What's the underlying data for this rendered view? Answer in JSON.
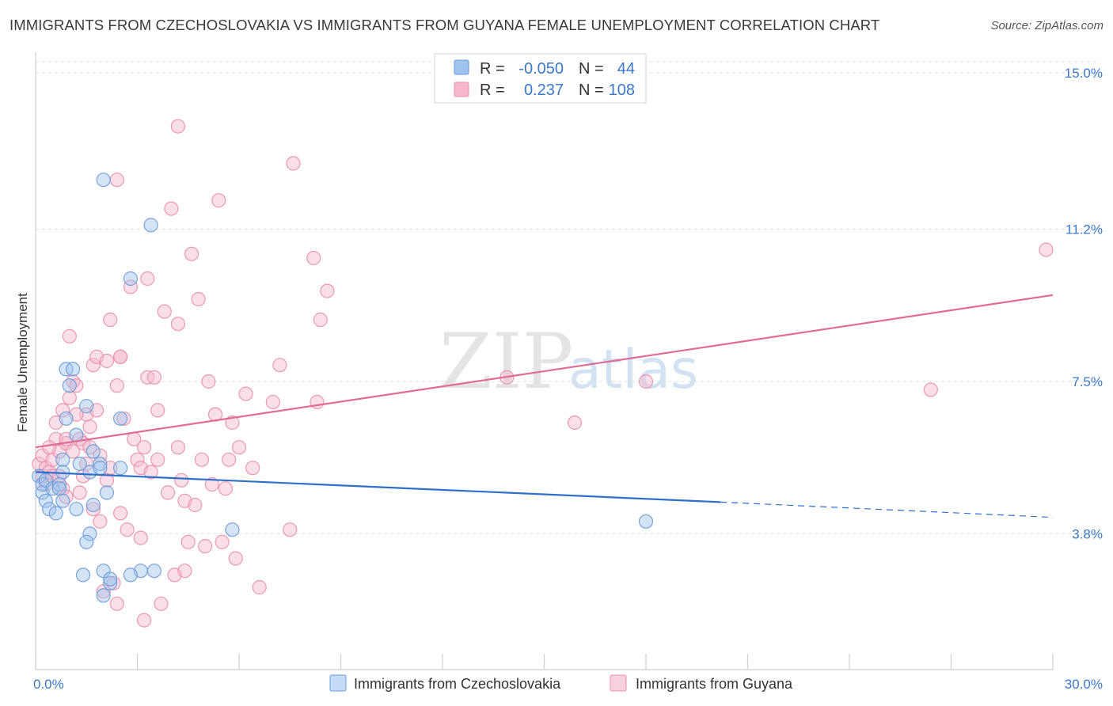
{
  "title": "IMMIGRANTS FROM CZECHOSLOVAKIA VS IMMIGRANTS FROM GUYANA FEMALE UNEMPLOYMENT CORRELATION CHART",
  "source": "Source: ZipAtlas.com",
  "watermark": {
    "zip": "ZIP",
    "atlas": "atlas"
  },
  "colors": {
    "blue_fill": "#9ec3ee",
    "blue_stroke": "#6b9ad8",
    "blue_line": "#2f6fcc",
    "pink_fill": "#f5b8cb",
    "pink_stroke": "#e98fab",
    "pink_line": "#e06b95",
    "axis_text": "#3b78c9",
    "grid": "#dddddd"
  },
  "legend": {
    "rows": [
      {
        "r_label": "R =",
        "r_value": "-0.050",
        "n_label": "N =",
        "n_value": "44",
        "series": "blue"
      },
      {
        "r_label": "R =",
        "r_value": "0.237",
        "n_label": "N =",
        "n_value": "108",
        "series": "pink"
      }
    ]
  },
  "chart_data": {
    "type": "scatter",
    "title": "IMMIGRANTS FROM CZECHOSLOVAKIA VS IMMIGRANTS FROM GUYANA FEMALE UNEMPLOYMENT CORRELATION CHART",
    "xlabel": "",
    "ylabel": "Female Unemployment",
    "xlim": [
      0,
      30
    ],
    "ylim": [
      0.5,
      15.5
    ],
    "x_tick_labels": [
      {
        "value": 0,
        "label": "0.0%"
      },
      {
        "value": 30,
        "label": "30.0%"
      }
    ],
    "y_tick_labels": [
      {
        "value": 3.8,
        "label": "3.8%"
      },
      {
        "value": 7.5,
        "label": "7.5%"
      },
      {
        "value": 11.2,
        "label": "11.2%"
      },
      {
        "value": 15.0,
        "label": "15.0%"
      }
    ],
    "legend_position": "bottom",
    "series": [
      {
        "name": "Immigrants from Czechoslovakia",
        "color": "blue",
        "R": -0.05,
        "N": 44,
        "trend": {
          "x0": 0,
          "y0": 5.3,
          "x1": 20.2,
          "y1": 4.57,
          "dash_to_x": 30,
          "dash_to_y": 4.2
        },
        "points": [
          [
            0.1,
            5.2
          ],
          [
            0.2,
            4.8
          ],
          [
            0.2,
            5.0
          ],
          [
            0.3,
            4.6
          ],
          [
            0.3,
            5.1
          ],
          [
            0.4,
            4.4
          ],
          [
            0.5,
            4.9
          ],
          [
            0.6,
            4.3
          ],
          [
            0.7,
            5.0
          ],
          [
            0.8,
            5.6
          ],
          [
            0.8,
            5.3
          ],
          [
            0.7,
            4.9
          ],
          [
            0.8,
            4.6
          ],
          [
            0.9,
            7.8
          ],
          [
            0.9,
            6.6
          ],
          [
            1.0,
            7.4
          ],
          [
            1.1,
            7.8
          ],
          [
            1.2,
            6.2
          ],
          [
            1.3,
            5.5
          ],
          [
            1.2,
            4.4
          ],
          [
            1.5,
            6.9
          ],
          [
            1.6,
            3.8
          ],
          [
            1.6,
            5.3
          ],
          [
            1.7,
            4.5
          ],
          [
            1.7,
            5.8
          ],
          [
            1.9,
            5.5
          ],
          [
            1.9,
            5.4
          ],
          [
            1.5,
            3.6
          ],
          [
            1.4,
            2.8
          ],
          [
            2.0,
            2.9
          ],
          [
            2.0,
            2.3
          ],
          [
            2.2,
            2.6
          ],
          [
            2.2,
            2.7
          ],
          [
            2.5,
            5.4
          ],
          [
            2.1,
            4.8
          ],
          [
            2.0,
            12.4
          ],
          [
            2.5,
            6.6
          ],
          [
            2.8,
            10.0
          ],
          [
            3.4,
            11.3
          ],
          [
            3.1,
            2.9
          ],
          [
            3.5,
            2.9
          ],
          [
            2.8,
            2.8
          ],
          [
            5.8,
            3.9
          ],
          [
            18.0,
            4.1
          ]
        ]
      },
      {
        "name": "Immigrants from Guyana",
        "color": "pink",
        "R": 0.237,
        "N": 108,
        "trend": {
          "x0": 0,
          "y0": 5.9,
          "x1": 30,
          "y1": 9.6
        },
        "points": [
          [
            0.1,
            5.5
          ],
          [
            0.2,
            5.2
          ],
          [
            0.2,
            5.7
          ],
          [
            0.3,
            5.0
          ],
          [
            0.3,
            5.4
          ],
          [
            0.4,
            5.3
          ],
          [
            0.5,
            5.6
          ],
          [
            0.5,
            5.2
          ],
          [
            0.6,
            6.5
          ],
          [
            0.6,
            6.1
          ],
          [
            0.7,
            5.8
          ],
          [
            0.7,
            5.2
          ],
          [
            0.8,
            4.9
          ],
          [
            0.8,
            6.8
          ],
          [
            0.9,
            4.7
          ],
          [
            0.9,
            6.0
          ],
          [
            1.0,
            8.6
          ],
          [
            1.0,
            7.1
          ],
          [
            1.1,
            7.5
          ],
          [
            1.1,
            5.8
          ],
          [
            1.2,
            7.4
          ],
          [
            1.3,
            6.1
          ],
          [
            1.3,
            4.8
          ],
          [
            1.4,
            6.0
          ],
          [
            1.4,
            5.2
          ],
          [
            1.5,
            6.7
          ],
          [
            1.5,
            5.5
          ],
          [
            1.6,
            6.4
          ],
          [
            1.7,
            7.9
          ],
          [
            1.7,
            4.4
          ],
          [
            1.8,
            8.1
          ],
          [
            1.8,
            6.8
          ],
          [
            1.9,
            5.7
          ],
          [
            1.9,
            4.1
          ],
          [
            2.0,
            2.4
          ],
          [
            2.1,
            8.0
          ],
          [
            2.1,
            5.1
          ],
          [
            2.2,
            9.0
          ],
          [
            2.2,
            5.4
          ],
          [
            2.3,
            2.6
          ],
          [
            2.4,
            2.1
          ],
          [
            2.4,
            7.4
          ],
          [
            2.5,
            8.1
          ],
          [
            2.5,
            4.3
          ],
          [
            2.6,
            6.6
          ],
          [
            2.7,
            3.9
          ],
          [
            2.8,
            9.8
          ],
          [
            2.9,
            6.1
          ],
          [
            3.0,
            5.6
          ],
          [
            3.1,
            5.4
          ],
          [
            3.1,
            3.7
          ],
          [
            3.2,
            1.7
          ],
          [
            3.3,
            7.6
          ],
          [
            3.3,
            10.0
          ],
          [
            3.4,
            5.3
          ],
          [
            3.5,
            7.6
          ],
          [
            3.6,
            6.8
          ],
          [
            3.6,
            5.6
          ],
          [
            3.7,
            2.1
          ],
          [
            3.8,
            9.2
          ],
          [
            3.9,
            4.8
          ],
          [
            4.0,
            11.7
          ],
          [
            4.1,
            2.8
          ],
          [
            4.2,
            8.9
          ],
          [
            4.2,
            5.9
          ],
          [
            4.3,
            5.1
          ],
          [
            4.4,
            4.6
          ],
          [
            4.4,
            2.9
          ],
          [
            4.5,
            3.6
          ],
          [
            4.6,
            10.6
          ],
          [
            4.7,
            4.5
          ],
          [
            4.8,
            9.5
          ],
          [
            4.9,
            5.6
          ],
          [
            5.0,
            3.5
          ],
          [
            5.1,
            7.5
          ],
          [
            5.2,
            5.0
          ],
          [
            5.3,
            6.7
          ],
          [
            5.4,
            11.9
          ],
          [
            5.5,
            3.6
          ],
          [
            5.6,
            4.9
          ],
          [
            5.7,
            5.6
          ],
          [
            5.8,
            6.5
          ],
          [
            5.9,
            3.2
          ],
          [
            6.0,
            5.9
          ],
          [
            6.2,
            7.2
          ],
          [
            6.4,
            5.4
          ],
          [
            6.6,
            2.5
          ],
          [
            7.0,
            7.0
          ],
          [
            7.2,
            7.9
          ],
          [
            7.5,
            3.9
          ],
          [
            7.6,
            12.8
          ],
          [
            8.2,
            10.5
          ],
          [
            8.3,
            7.0
          ],
          [
            8.4,
            9.0
          ],
          [
            8.6,
            9.7
          ],
          [
            13.9,
            7.6
          ],
          [
            15.9,
            6.5
          ],
          [
            18.0,
            7.5
          ],
          [
            26.4,
            7.3
          ],
          [
            29.8,
            10.7
          ],
          [
            2.5,
            8.1
          ],
          [
            4.2,
            13.7
          ],
          [
            2.4,
            12.4
          ],
          [
            3.2,
            5.9
          ],
          [
            1.6,
            5.9
          ],
          [
            0.9,
            6.1
          ],
          [
            1.2,
            6.7
          ],
          [
            0.4,
            5.9
          ]
        ]
      }
    ]
  },
  "bottom_legend": {
    "items": [
      {
        "label": "Immigrants from Czechoslovakia",
        "series": "blue"
      },
      {
        "label": "Immigrants from Guyana",
        "series": "pink"
      }
    ]
  }
}
